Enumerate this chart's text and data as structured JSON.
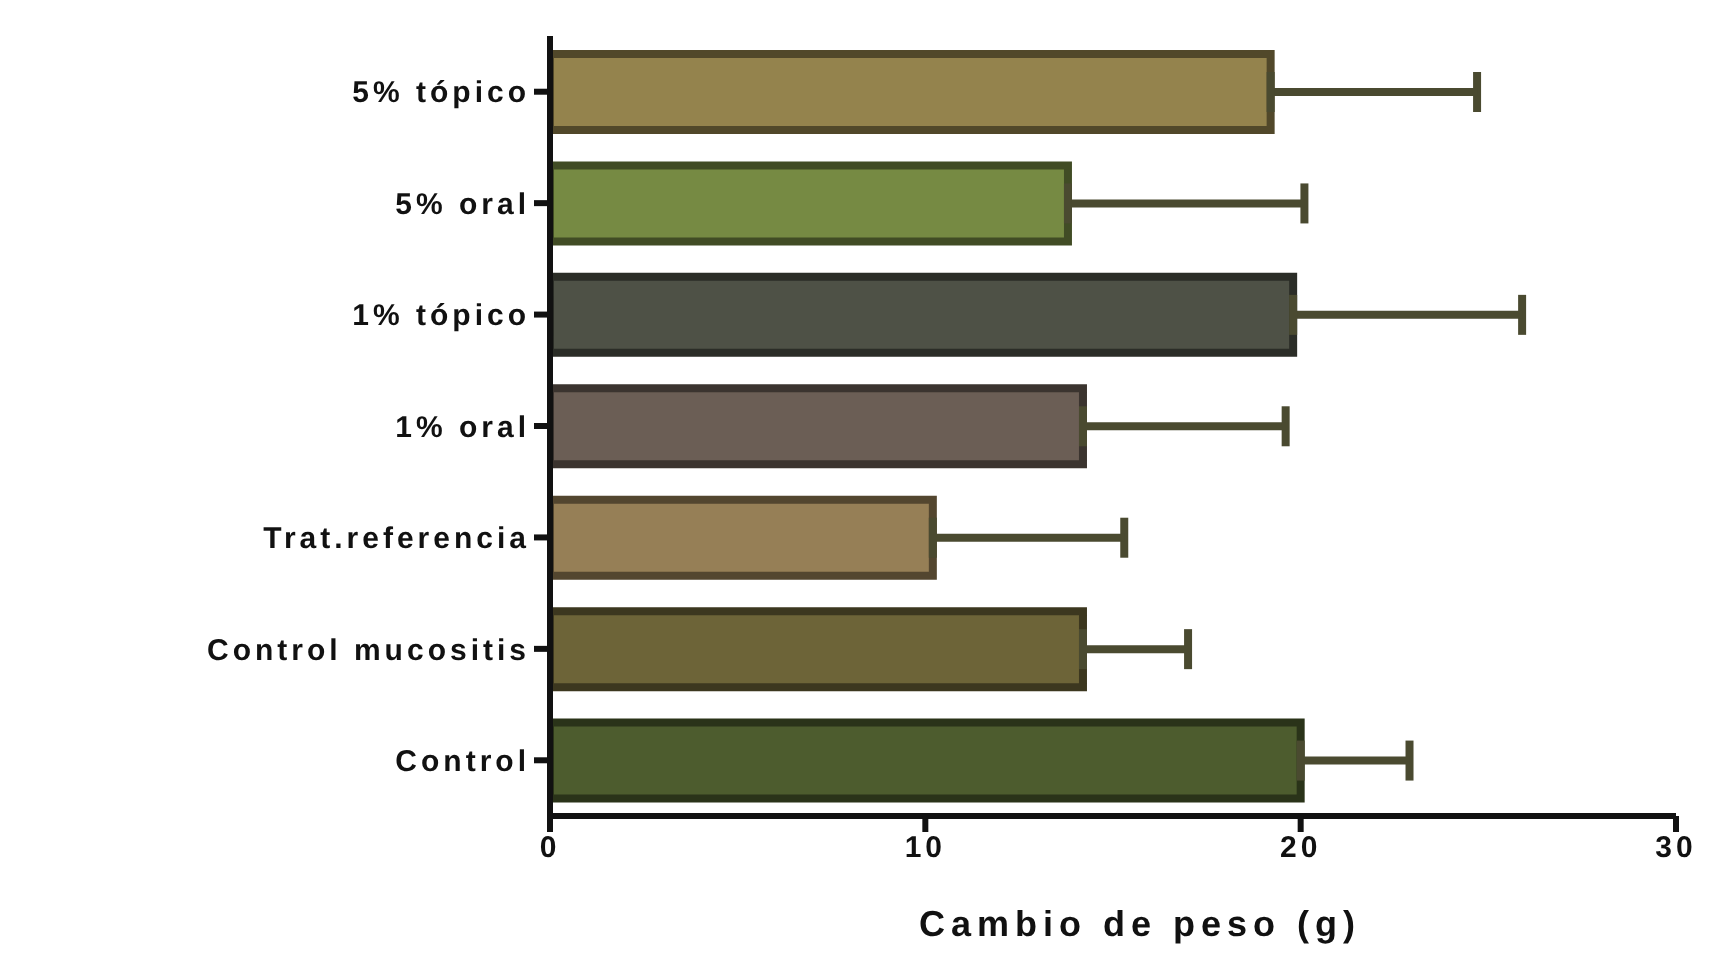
{
  "chart_data": {
    "type": "bar",
    "orientation": "horizontal",
    "xlabel": "Cambio de peso (g)",
    "categories": [
      "5% tópico",
      "5% oral",
      "1% tópico",
      "1% oral",
      "Trat.referencia",
      "Control mucositis",
      "Control"
    ],
    "values": [
      19.2,
      13.8,
      19.8,
      14.2,
      10.2,
      14.2,
      20.0
    ],
    "errors": [
      [
        19.2,
        24.7
      ],
      [
        13.8,
        20.1
      ],
      [
        19.8,
        25.9
      ],
      [
        14.2,
        19.6
      ],
      [
        10.2,
        15.3
      ],
      [
        14.2,
        17.0
      ],
      [
        20.0,
        22.9
      ]
    ],
    "colors": [
      "#94834d",
      "#768a43",
      "#4e5146",
      "#6b5e55",
      "#967f56",
      "#6d6438",
      "#4d5c2e"
    ],
    "xlim": [
      0,
      30
    ],
    "xticks": [
      0,
      10,
      20,
      30
    ],
    "grid": false,
    "legend": false
  }
}
